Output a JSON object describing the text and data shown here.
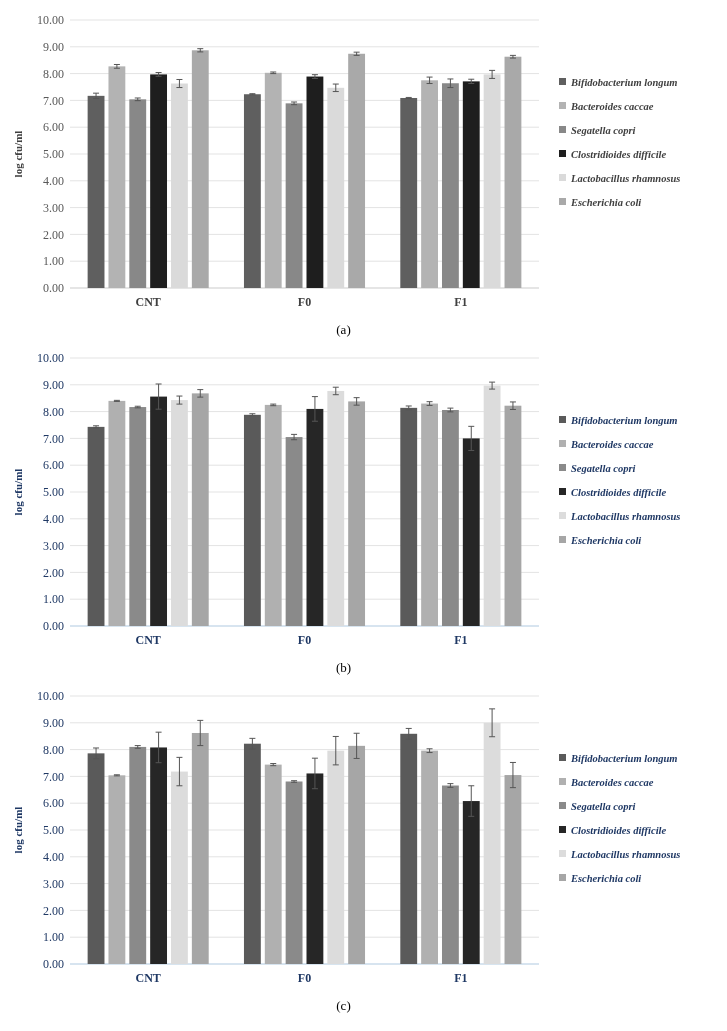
{
  "chart_data": [
    {
      "type": "bar",
      "ylabel": "log cfu/ml",
      "categories": [
        "CNT",
        "F0",
        "F1"
      ],
      "ylim": [
        0,
        10
      ],
      "yticks": [
        {
          "value": 0,
          "label": "0.00"
        },
        {
          "value": 1,
          "label": "1.00"
        },
        {
          "value": 2,
          "label": "2.00"
        },
        {
          "value": 3,
          "label": "3.00"
        },
        {
          "value": 4,
          "label": "4.00"
        },
        {
          "value": 5,
          "label": "5.00"
        },
        {
          "value": 6,
          "label": "6.00"
        },
        {
          "value": 7,
          "label": "7.00"
        },
        {
          "value": 8,
          "label": "8.00"
        },
        {
          "value": 9,
          "label": "9.00"
        },
        {
          "value": 10,
          "label": "10.00"
        }
      ],
      "grid": "y",
      "legend": "right",
      "annotations": [
        "(a)"
      ],
      "series": [
        {
          "name": "Bifidobacterium longum",
          "color": "#5f5f5f",
          "values": [
            7.17,
            7.23,
            7.09
          ],
          "errors": [
            0.1,
            0.02,
            0.02
          ]
        },
        {
          "name": "Bacteroides caccae",
          "color": "#b3b3b3",
          "values": [
            8.27,
            8.03,
            7.75
          ],
          "errors": [
            0.07,
            0.03,
            0.12
          ]
        },
        {
          "name": "Segatella copri",
          "color": "#888888",
          "values": [
            7.04,
            6.89,
            7.64
          ],
          "errors": [
            0.05,
            0.05,
            0.16
          ]
        },
        {
          "name": "Clostridioides difficile",
          "color": "#1e1e1e",
          "values": [
            7.97,
            7.89,
            7.71
          ],
          "errors": [
            0.07,
            0.07,
            0.08
          ]
        },
        {
          "name": "Lactobacillus rhamnosus",
          "color": "#dadada",
          "values": [
            7.63,
            7.47,
            7.97
          ],
          "errors": [
            0.15,
            0.14,
            0.15
          ]
        },
        {
          "name": "Escherichia coli",
          "color": "#a9a9a9",
          "values": [
            8.87,
            8.74,
            8.63
          ],
          "errors": [
            0.06,
            0.06,
            0.05
          ]
        }
      ]
    },
    {
      "type": "bar",
      "ylabel": "log cfu/ml",
      "categories": [
        "CNT",
        "F0",
        "F1"
      ],
      "ylim": [
        0,
        10
      ],
      "yticks": [
        {
          "value": 0,
          "label": "0.00"
        },
        {
          "value": 1,
          "label": "1.00"
        },
        {
          "value": 2,
          "label": "2.00"
        },
        {
          "value": 3,
          "label": "3.00"
        },
        {
          "value": 4,
          "label": "4.00"
        },
        {
          "value": 5,
          "label": "5.00"
        },
        {
          "value": 6,
          "label": "6.00"
        },
        {
          "value": 7,
          "label": "7.00"
        },
        {
          "value": 8,
          "label": "8.00"
        },
        {
          "value": 9,
          "label": "9.00"
        },
        {
          "value": 10,
          "label": "10.00"
        }
      ],
      "grid": "y",
      "legend": "right",
      "annotations": [
        "(b)"
      ],
      "series": [
        {
          "name": "Bifidobacterium longum",
          "color": "#5a5a5a",
          "values": [
            7.43,
            7.88,
            8.14
          ],
          "errors": [
            0.04,
            0.04,
            0.07
          ]
        },
        {
          "name": "Bacteroides caccae",
          "color": "#b0b0b0",
          "values": [
            8.4,
            8.25,
            8.3
          ],
          "errors": [
            0.02,
            0.03,
            0.07
          ]
        },
        {
          "name": "Segatella copri",
          "color": "#8a8a8a",
          "values": [
            8.17,
            7.05,
            8.06
          ],
          "errors": [
            0.03,
            0.1,
            0.07
          ]
        },
        {
          "name": "Clostridioides difficile",
          "color": "#262626",
          "values": [
            8.56,
            8.1,
            7.0
          ],
          "errors": [
            0.47,
            0.46,
            0.45
          ]
        },
        {
          "name": "Lactobacillus rhamnosus",
          "color": "#dcdcdc",
          "values": [
            8.43,
            8.77,
            8.97
          ],
          "errors": [
            0.15,
            0.14,
            0.13
          ]
        },
        {
          "name": "Escherichia coli",
          "color": "#a6a6a6",
          "values": [
            8.68,
            8.38,
            8.22
          ],
          "errors": [
            0.14,
            0.14,
            0.14
          ]
        }
      ]
    },
    {
      "type": "bar",
      "ylabel": "log cfu/ml",
      "categories": [
        "CNT",
        "F0",
        "F1"
      ],
      "ylim": [
        0,
        10
      ],
      "yticks": [
        {
          "value": 0,
          "label": "0.00"
        },
        {
          "value": 1,
          "label": "1.00"
        },
        {
          "value": 2,
          "label": "2.00"
        },
        {
          "value": 3,
          "label": "3.00"
        },
        {
          "value": 4,
          "label": "4.00"
        },
        {
          "value": 5,
          "label": "5.00"
        },
        {
          "value": 6,
          "label": "6.00"
        },
        {
          "value": 7,
          "label": "7.00"
        },
        {
          "value": 8,
          "label": "8.00"
        },
        {
          "value": 9,
          "label": "9.00"
        },
        {
          "value": 10,
          "label": "10.00"
        }
      ],
      "grid": "y",
      "legend": "right",
      "annotations": [
        "(c)"
      ],
      "series": [
        {
          "name": "Bifidobacterium longum",
          "color": "#5a5a5a",
          "values": [
            7.86,
            8.22,
            8.59
          ],
          "errors": [
            0.2,
            0.2,
            0.2
          ]
        },
        {
          "name": "Bacteroides caccae",
          "color": "#b0b0b0",
          "values": [
            7.04,
            7.44,
            7.96
          ],
          "errors": [
            0.02,
            0.04,
            0.07
          ]
        },
        {
          "name": "Segatella copri",
          "color": "#8a8a8a",
          "values": [
            8.1,
            6.81,
            6.66
          ],
          "errors": [
            0.05,
            0.03,
            0.07
          ]
        },
        {
          "name": "Clostridioides difficile",
          "color": "#262626",
          "values": [
            8.08,
            7.11,
            6.08
          ],
          "errors": [
            0.57,
            0.57,
            0.57
          ]
        },
        {
          "name": "Lactobacillus rhamnosus",
          "color": "#dcdcdc",
          "values": [
            7.18,
            7.96,
            9.0
          ],
          "errors": [
            0.53,
            0.53,
            0.52
          ]
        },
        {
          "name": "Escherichia coli",
          "color": "#a6a6a6",
          "values": [
            8.62,
            8.14,
            7.05
          ],
          "errors": [
            0.47,
            0.47,
            0.47
          ]
        }
      ]
    }
  ]
}
